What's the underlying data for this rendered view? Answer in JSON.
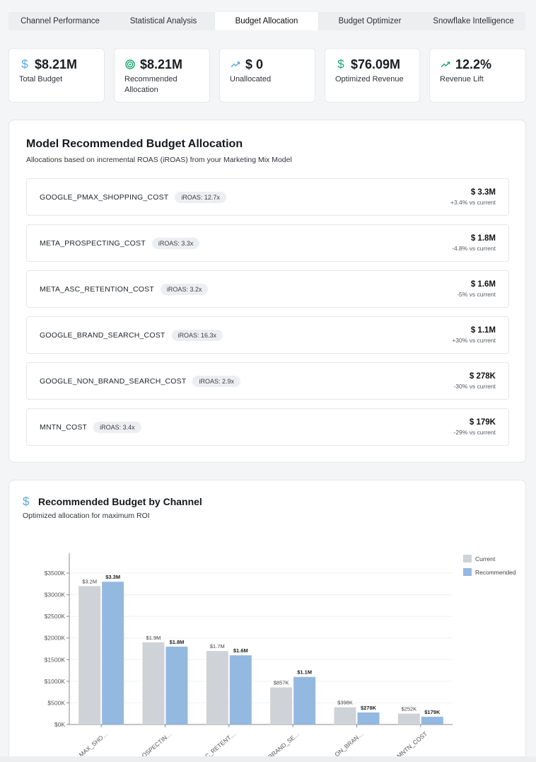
{
  "tabs": [
    {
      "label": "Channel Performance",
      "active": false
    },
    {
      "label": "Statistical Analysis",
      "active": false
    },
    {
      "label": "Budget Allocation",
      "active": true
    },
    {
      "label": "Budget Optimizer",
      "active": false
    },
    {
      "label": "Snowflake Intelligence",
      "active": false
    }
  ],
  "kpis": [
    {
      "icon": "dollar-icon",
      "value": "$8.21M",
      "label": "Total Budget",
      "color": "#5aa7de"
    },
    {
      "icon": "target-icon",
      "value": "$8.21M",
      "label": "Recommended Allocation",
      "color": "#1ea672"
    },
    {
      "icon": "trend-up-icon",
      "value": "$ 0",
      "label": "Unallocated",
      "color": "#5aa7de"
    },
    {
      "icon": "dollar-icon",
      "value": "$76.09M",
      "label": "Optimized Revenue",
      "color": "#1ea672"
    },
    {
      "icon": "trend-up-icon",
      "value": "12.2%",
      "label": "Revenue Lift",
      "color": "#1ea672"
    }
  ],
  "allocation": {
    "title": "Model Recommended Budget Allocation",
    "subtitle": "Allocations based on incremental ROAS (iROAS) from your Marketing Mix Model",
    "rows": [
      {
        "channel": "GOOGLE_PMAX_SHOPPING_COST",
        "iroas": "iROAS: 12.7x",
        "amount": "$ 3.3M",
        "change": "+3.4% vs current"
      },
      {
        "channel": "META_PROSPECTING_COST",
        "iroas": "iROAS: 3.3x",
        "amount": "$ 1.8M",
        "change": "-4.8% vs current"
      },
      {
        "channel": "META_ASC_RETENTION_COST",
        "iroas": "iROAS: 3.2x",
        "amount": "$ 1.6M",
        "change": "-5% vs current"
      },
      {
        "channel": "GOOGLE_BRAND_SEARCH_COST",
        "iroas": "iROAS: 16.3x",
        "amount": "$ 1.1M",
        "change": "+30% vs current"
      },
      {
        "channel": "GOOGLE_NON_BRAND_SEARCH_COST",
        "iroas": "iROAS: 2.9x",
        "amount": "$ 278K",
        "change": "-30% vs current"
      },
      {
        "channel": "MNTN_COST",
        "iroas": "iROAS: 3.4x",
        "amount": "$ 179K",
        "change": "-29% vs current"
      }
    ]
  },
  "chart_card": {
    "title": "Recommended Budget by Channel",
    "subtitle": "Optimized allocation for maximum ROI",
    "icon": "dollar-icon"
  },
  "chart_data": {
    "type": "bar",
    "categories": [
      "…MAX_SHO…",
      "…OSPECTIN…",
      "…C_RETENT…",
      "…BRAND_SE…",
      "…ON_BRAN…",
      "…MNTN_COST"
    ],
    "series": [
      {
        "name": "Current",
        "color": "#cfd3d8",
        "values": [
          3200,
          1900,
          1700,
          857,
          398,
          252
        ],
        "labels": [
          "$3.2M",
          "$1.9M",
          "$1.7M",
          "$857K",
          "$398K",
          "$252K"
        ]
      },
      {
        "name": "Recommended",
        "color": "#94b9e0",
        "values": [
          3300,
          1800,
          1600,
          1100,
          278,
          179
        ],
        "labels": [
          "$3.3M",
          "$1.8M",
          "$1.6M",
          "$1.1M",
          "$278K",
          "$179K"
        ]
      }
    ],
    "yticks": [
      "$0K",
      "$500K",
      "$1000K",
      "$1500K",
      "$2000K",
      "$2500K",
      "$3000K",
      "$3500K"
    ],
    "ylim": [
      0,
      3500
    ],
    "legend_position": "top-right",
    "grid": true
  }
}
